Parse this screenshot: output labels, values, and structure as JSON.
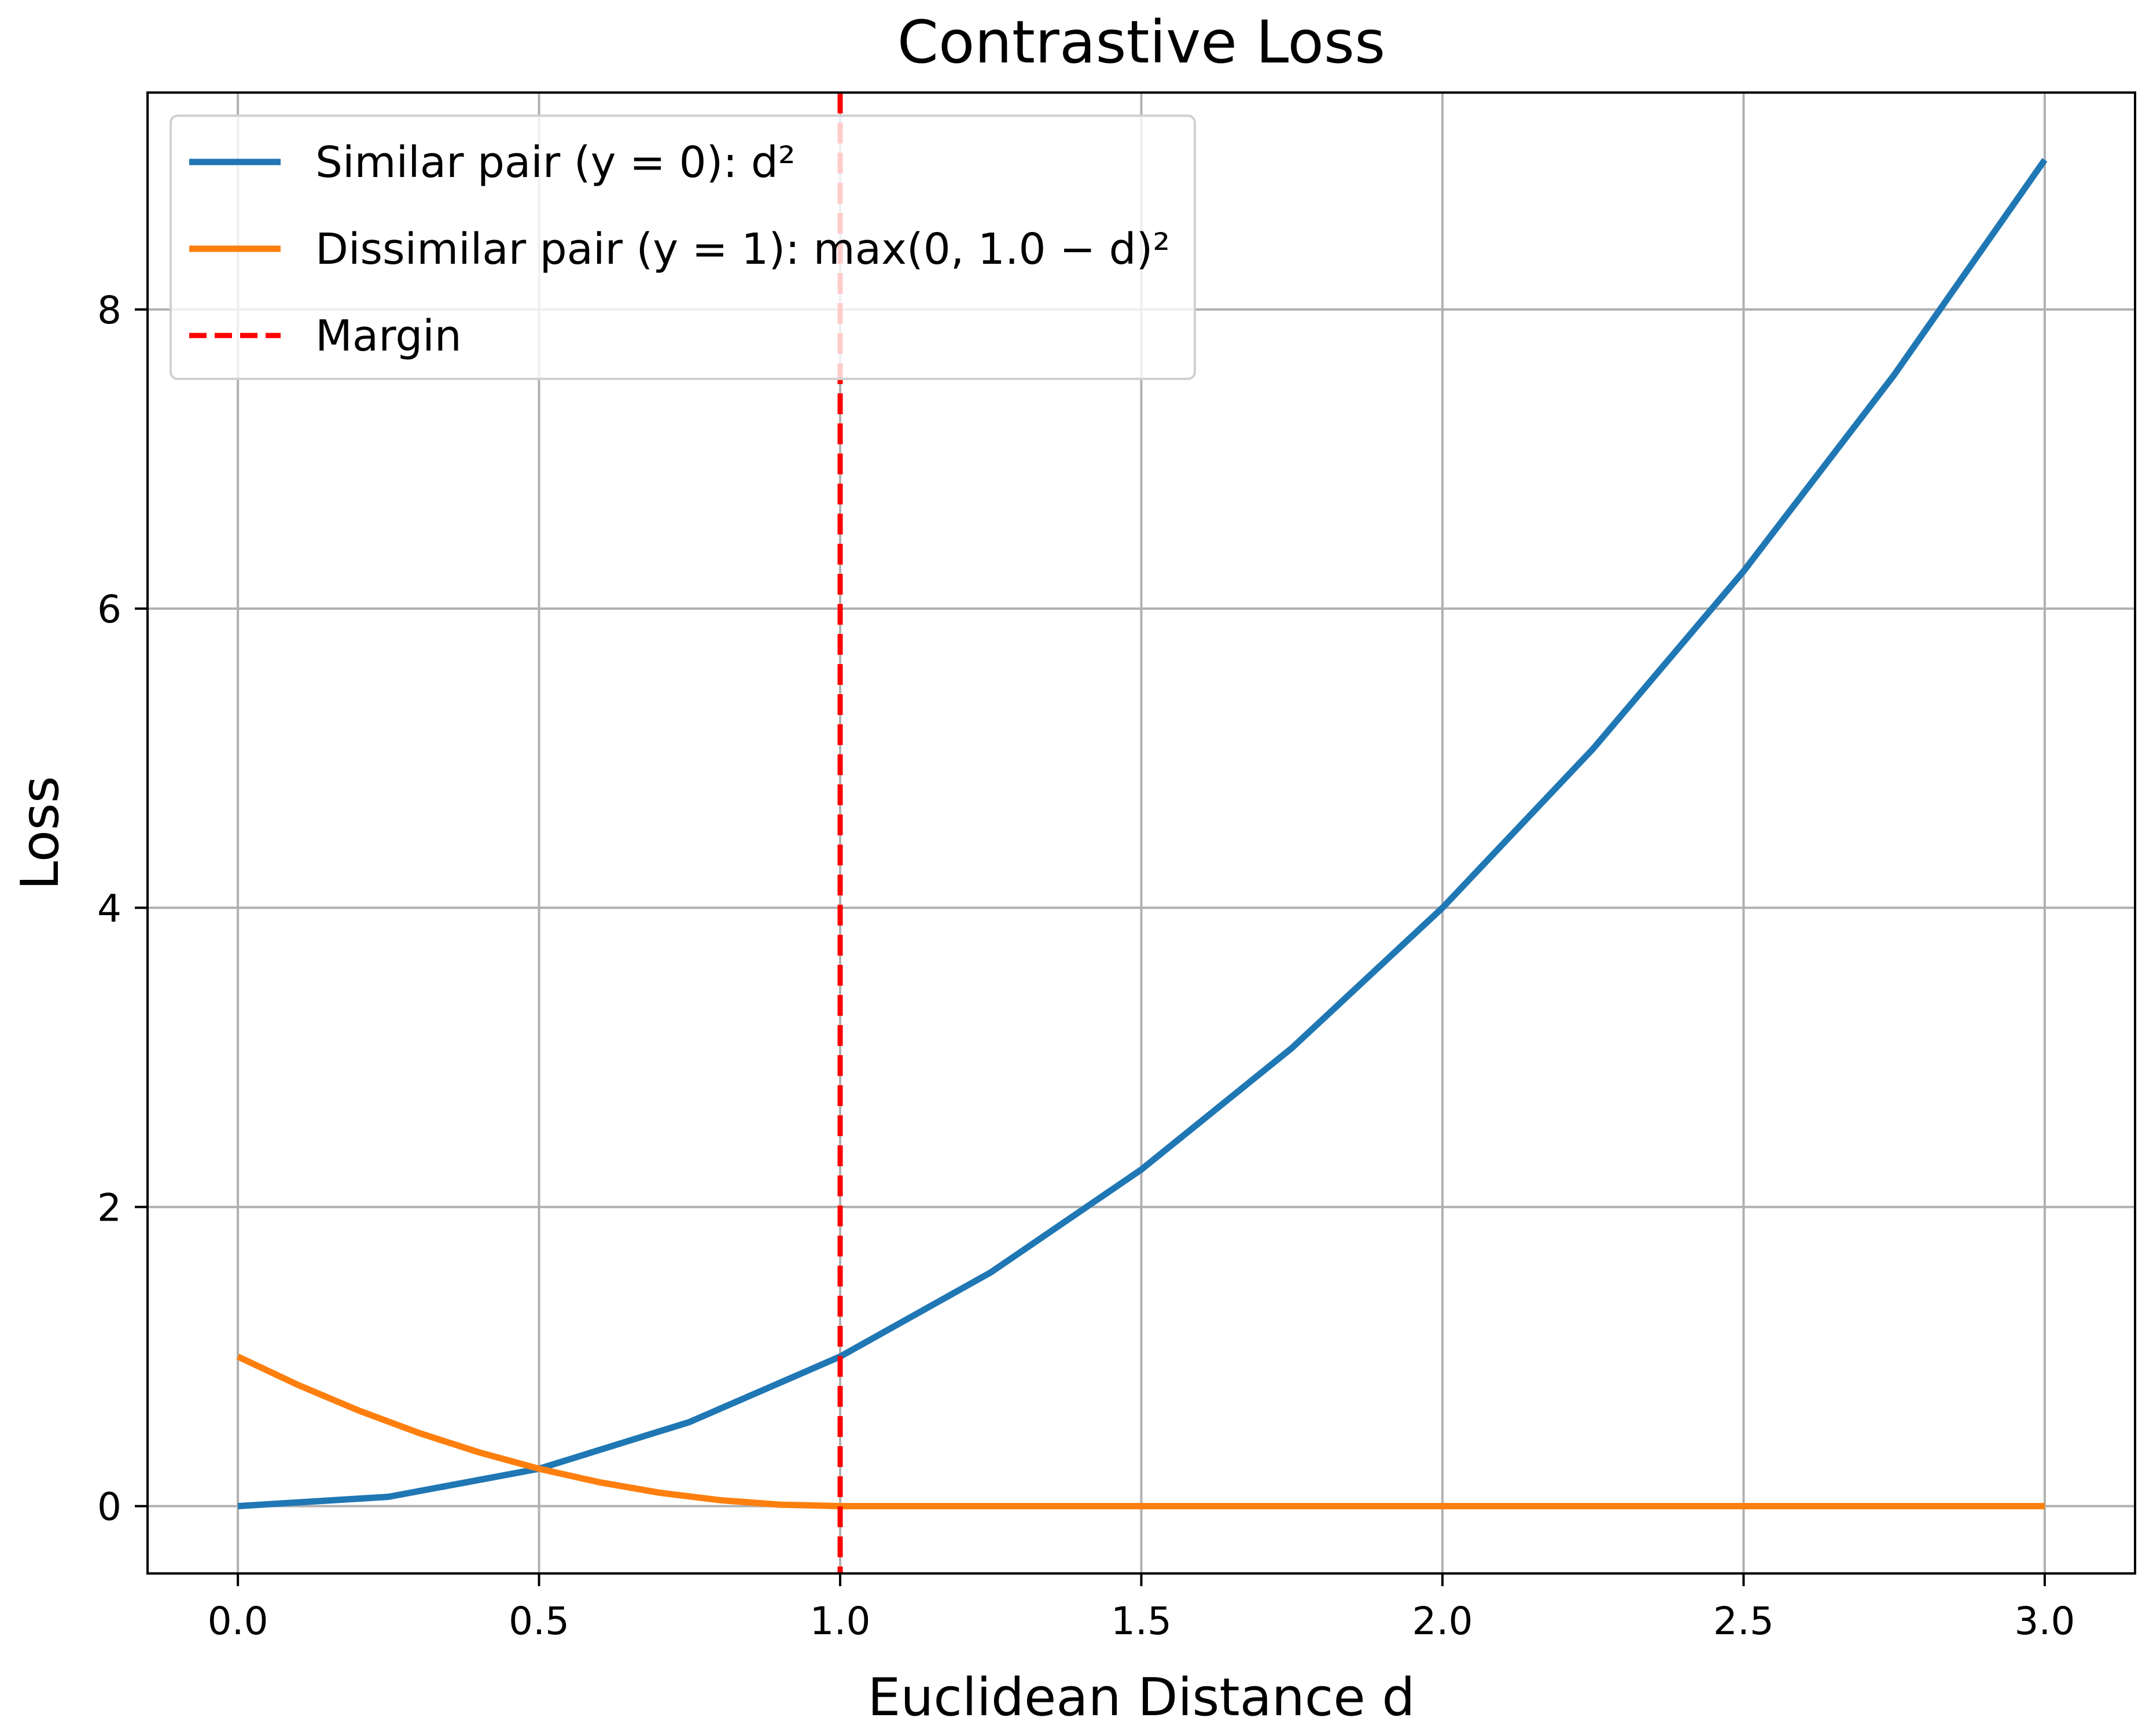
{
  "chart_data": {
    "type": "line",
    "title": "Contrastive Loss",
    "xlabel": "Euclidean Distance d",
    "ylabel": "Loss",
    "xlim": [
      -0.15,
      3.15
    ],
    "ylim": [
      -0.45,
      9.45
    ],
    "x_ticks": [
      0.0,
      0.5,
      1.0,
      1.5,
      2.0,
      2.5,
      3.0
    ],
    "x_tick_labels": [
      "0.0",
      "0.5",
      "1.0",
      "1.5",
      "2.0",
      "2.5",
      "3.0"
    ],
    "y_ticks": [
      0,
      2,
      4,
      6,
      8
    ],
    "y_tick_labels": [
      "0",
      "2",
      "4",
      "6",
      "8"
    ],
    "grid": true,
    "legend_position": "top-left",
    "series": [
      {
        "name": "Similar pair (y = 0): d²",
        "color": "#1f77b4",
        "x": [
          0.0,
          0.25,
          0.5,
          0.75,
          1.0,
          1.25,
          1.5,
          1.75,
          2.0,
          2.25,
          2.5,
          2.75,
          3.0
        ],
        "y": [
          0.0,
          0.0625,
          0.25,
          0.5625,
          1.0,
          1.5625,
          2.25,
          3.0625,
          4.0,
          5.0625,
          6.25,
          7.5625,
          9.0
        ]
      },
      {
        "name": "Dissimilar pair (y = 1): max(0, 1.0 − d)²",
        "color": "#ff7f0e",
        "x": [
          0.0,
          0.1,
          0.2,
          0.3,
          0.4,
          0.5,
          0.6,
          0.7,
          0.8,
          0.9,
          1.0,
          1.5,
          2.0,
          2.5,
          3.0
        ],
        "y": [
          1.0,
          0.81,
          0.64,
          0.49,
          0.36,
          0.25,
          0.16,
          0.09,
          0.04,
          0.01,
          0.0,
          0.0,
          0.0,
          0.0,
          0.0
        ]
      }
    ],
    "vlines": [
      {
        "name": "Margin",
        "x": 1.0,
        "color": "#ff0000",
        "style": "dashed"
      }
    ]
  }
}
